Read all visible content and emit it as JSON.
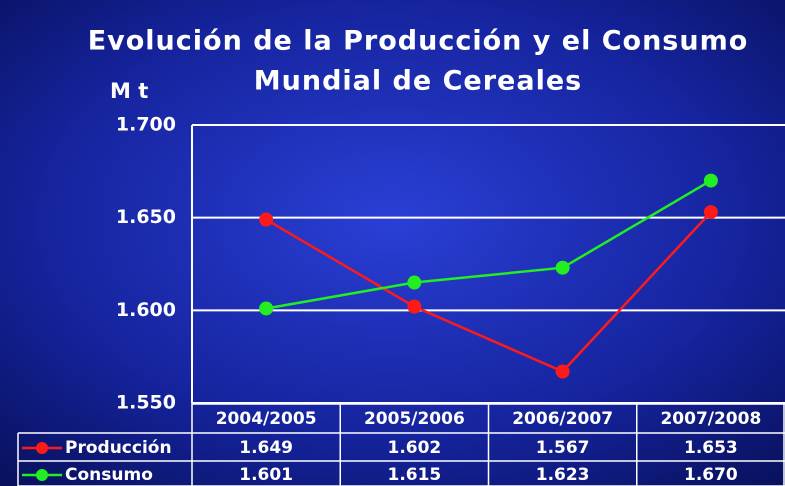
{
  "chart_data": {
    "type": "line",
    "title": [
      "Evolución de la Producción y el Consumo",
      "Mundial de Cereales"
    ],
    "y_label": "M t",
    "categories": [
      "2004/2005",
      "2005/2006",
      "2006/2007",
      "2007/2008"
    ],
    "series": [
      {
        "name": "Producción",
        "color": "#ff1a1a",
        "values": [
          1649,
          1602,
          1567,
          1653
        ],
        "value_labels": [
          "1.649",
          "1.602",
          "1.567",
          "1.653"
        ]
      },
      {
        "name": "Consumo",
        "color": "#22ee22",
        "values": [
          1601,
          1615,
          1623,
          1670
        ],
        "value_labels": [
          "1.601",
          "1.615",
          "1.623",
          "1.670"
        ]
      }
    ],
    "ylim": [
      1550,
      1700
    ],
    "yticks": [
      {
        "value": 1550,
        "label": "1.550"
      },
      {
        "value": 1600,
        "label": "1.600"
      },
      {
        "value": 1650,
        "label": "1.650"
      },
      {
        "value": 1700,
        "label": "1.700"
      }
    ],
    "grid": true
  }
}
